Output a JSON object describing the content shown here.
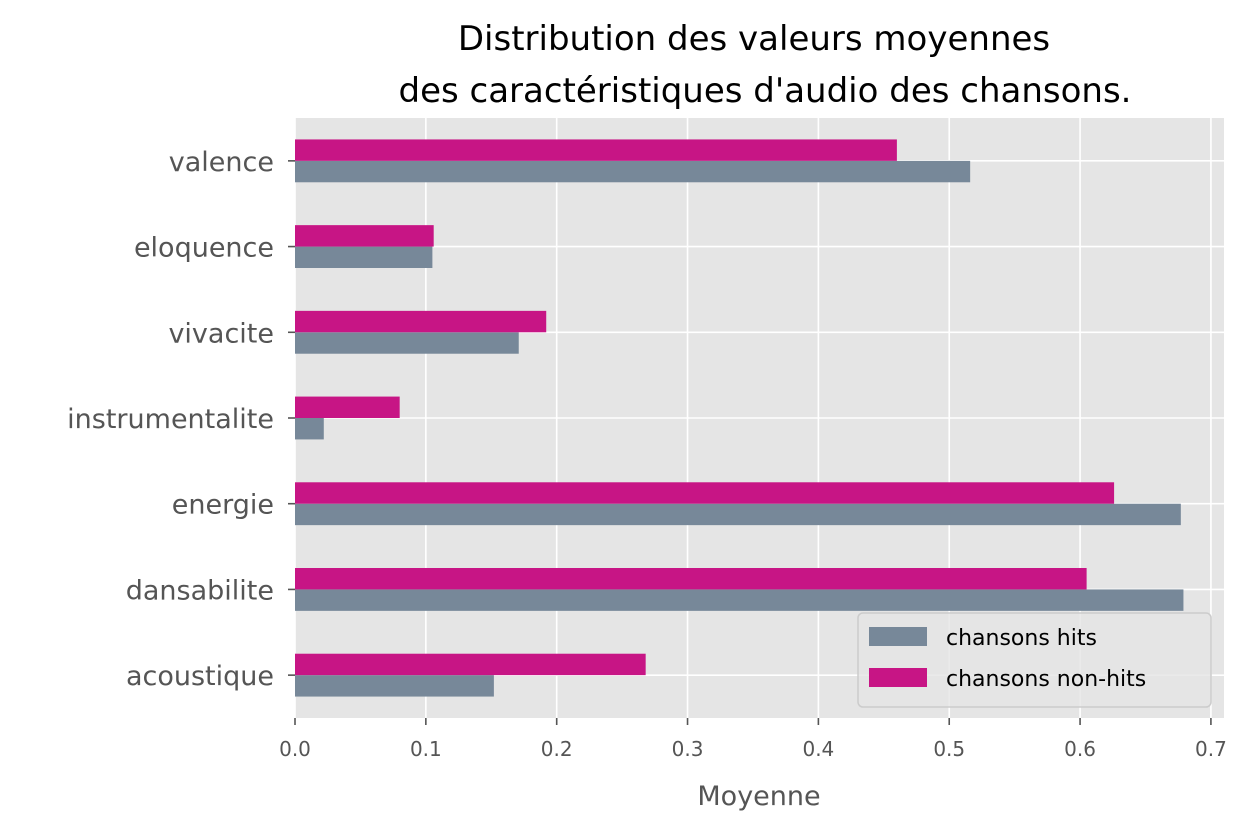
{
  "chart_data": {
    "type": "bar",
    "orientation": "horizontal",
    "title": "Distribution des valeurs moyennes\ndes caractéristiques d'audio des chansons.",
    "title_lines": [
      "Distribution des valeurs moyennes",
      "des caractéristiques d'audio des chansons."
    ],
    "xlabel": "Moyenne",
    "ylabel": "",
    "xlim": [
      0,
      0.71
    ],
    "xticks": [
      0.0,
      0.1,
      0.2,
      0.3,
      0.4,
      0.5,
      0.6,
      0.7
    ],
    "xtick_labels": [
      "0.0",
      "0.1",
      "0.2",
      "0.3",
      "0.4",
      "0.5",
      "0.6",
      "0.7"
    ],
    "categories": [
      "acoustique",
      "dansabilite",
      "energie",
      "instrumentalite",
      "vivacite",
      "eloquence",
      "valence"
    ],
    "series": [
      {
        "name": "chansons hits",
        "color": "#778899",
        "values": [
          0.152,
          0.679,
          0.677,
          0.022,
          0.171,
          0.105,
          0.516
        ]
      },
      {
        "name": "chansons non-hits",
        "color": "#C71585",
        "values": [
          0.268,
          0.605,
          0.626,
          0.08,
          0.192,
          0.106,
          0.46
        ]
      }
    ],
    "grid": true,
    "legend_position": "bottom-right"
  }
}
